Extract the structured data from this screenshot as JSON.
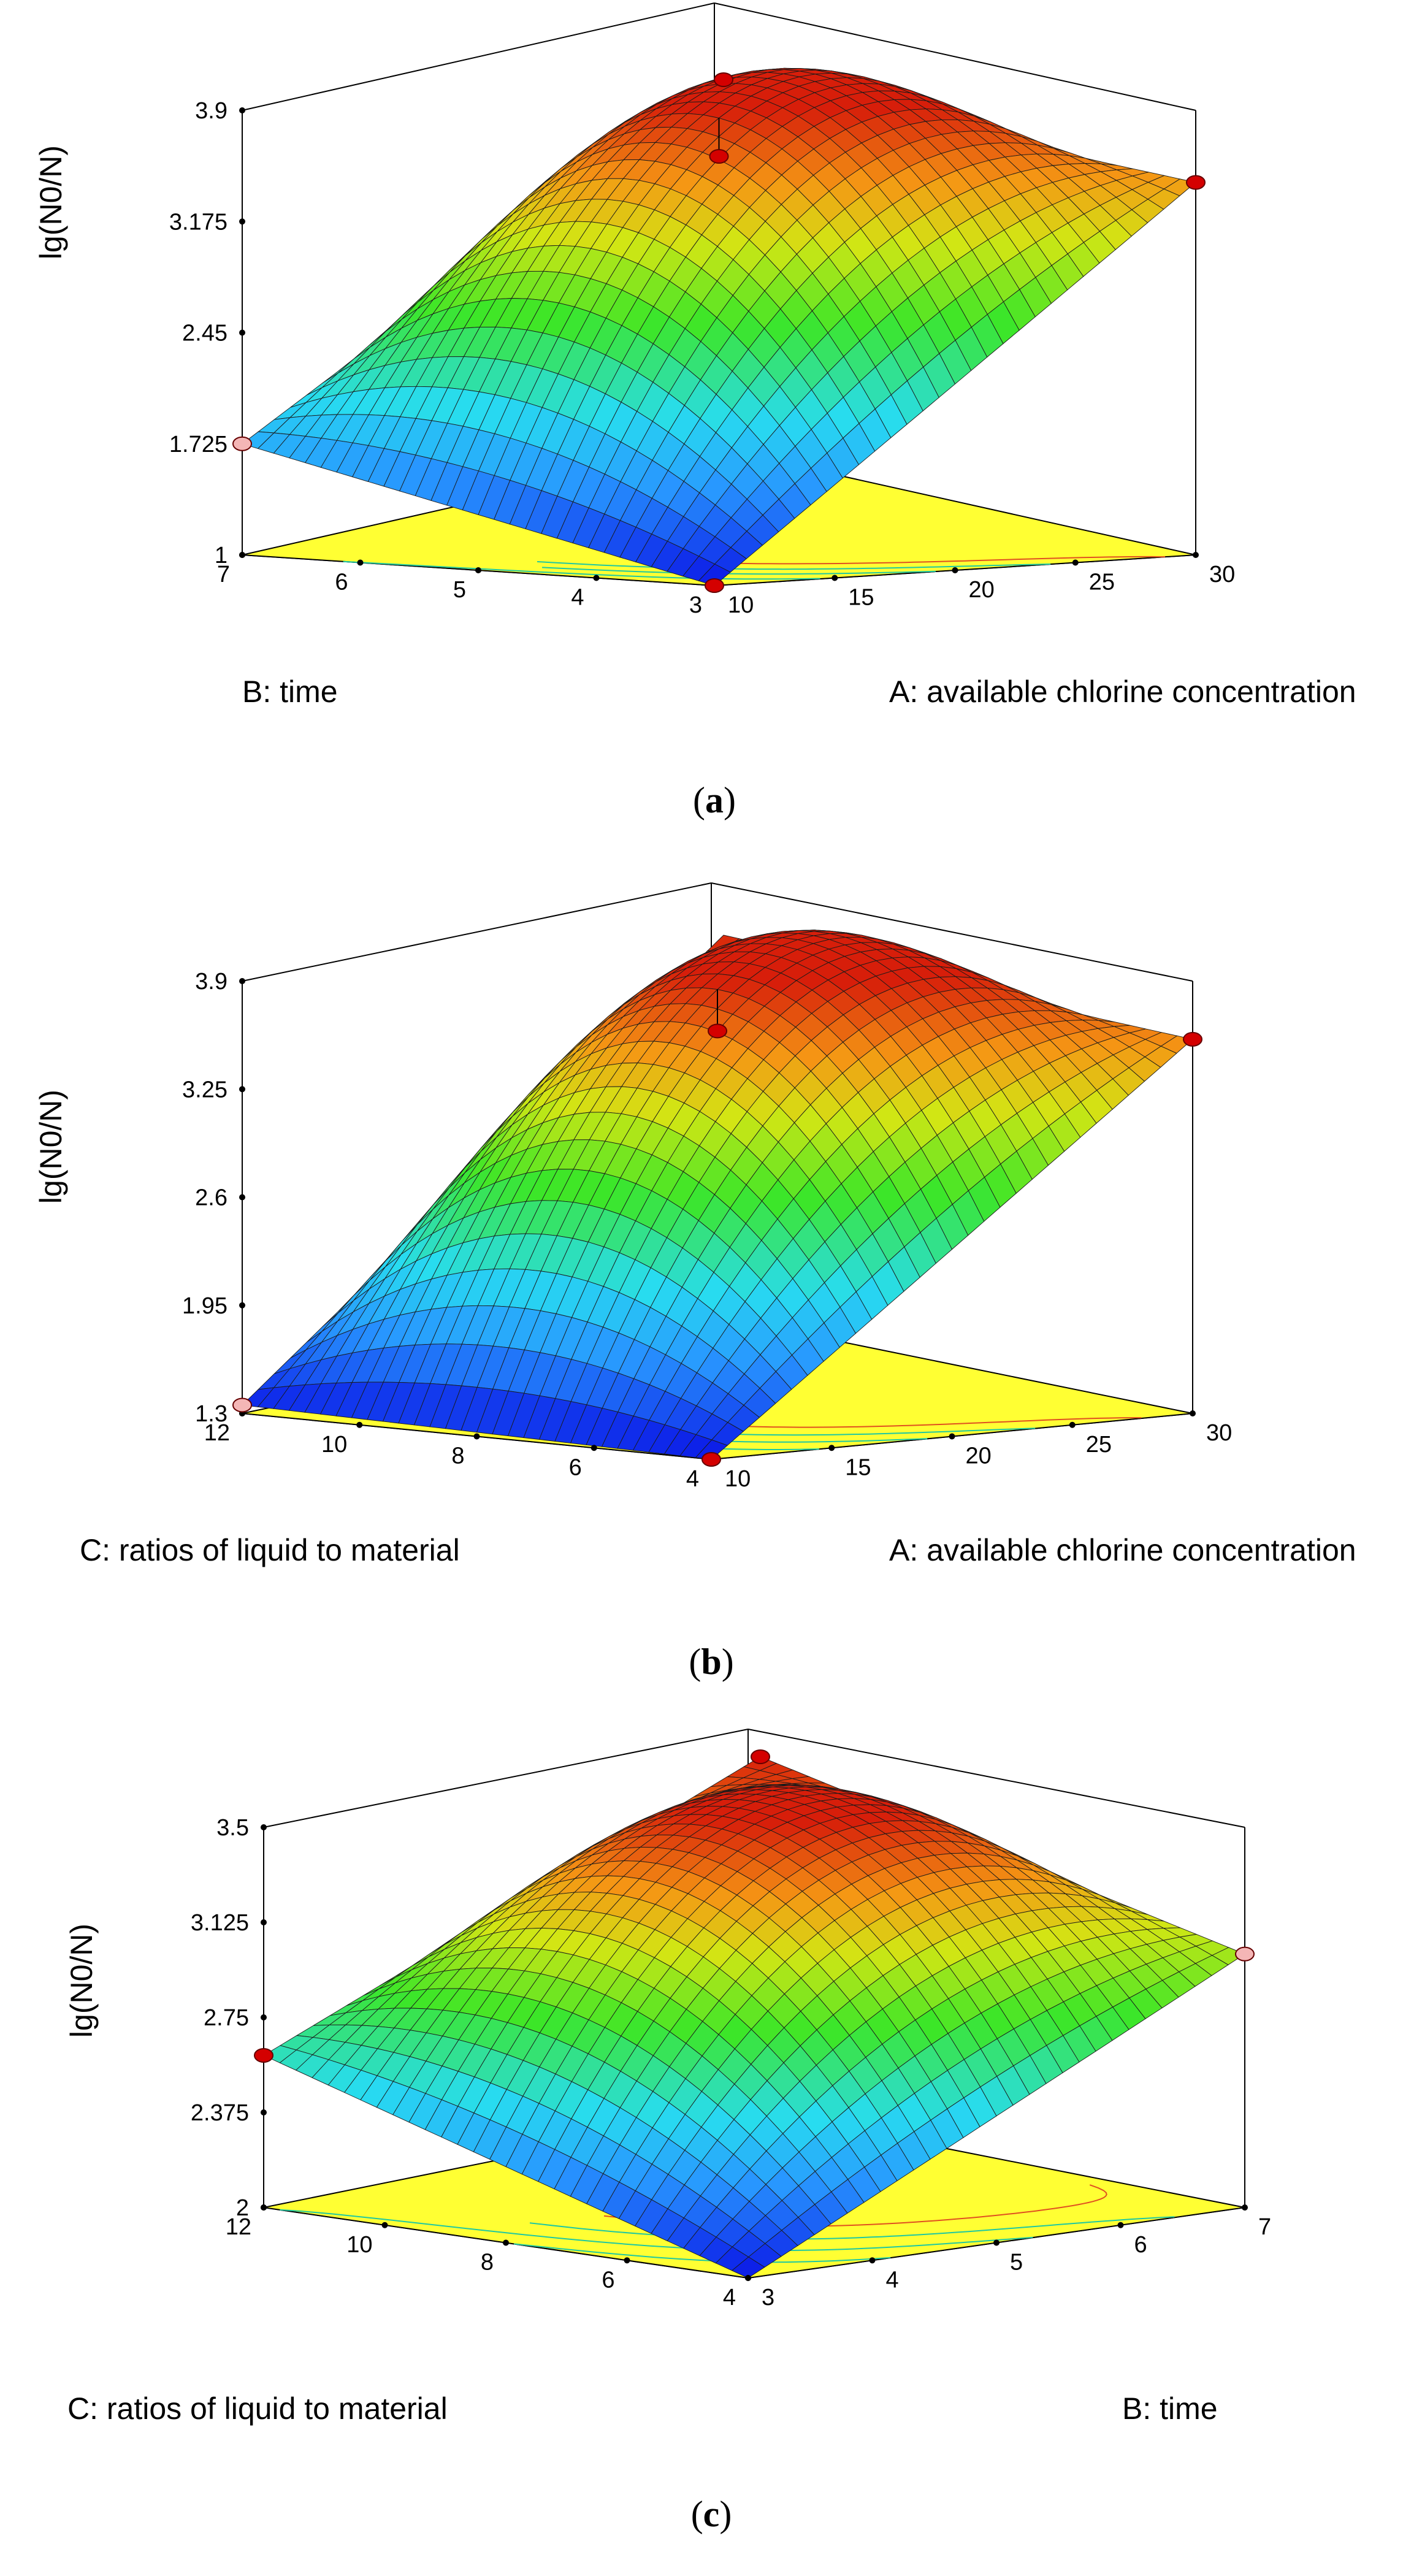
{
  "chart_data": [
    {
      "type": "surface",
      "caption_letter": "a",
      "x": {
        "label": "A: available chlorine concentration",
        "range": [
          10,
          30
        ],
        "ticks": [
          10,
          15,
          20,
          25,
          30
        ]
      },
      "y": {
        "label": "B: time",
        "range": [
          3,
          7
        ],
        "ticks": [
          3,
          4,
          5,
          6,
          7
        ]
      },
      "z": {
        "label": "lg(N0/N)",
        "range": [
          1,
          3.9
        ],
        "ticks": [
          "1",
          "1.725",
          "2.45",
          "3.175",
          "3.9"
        ]
      },
      "corner_values": {
        "x_low_y_low": 1.0,
        "x_high_y_low": 3.43,
        "x_low_y_high": 1.725,
        "x_high_y_high": 3.9
      },
      "center_value": 3.85,
      "design_points": [
        {
          "x": 10,
          "y": 3,
          "z": 1.0,
          "color": "#d40000"
        },
        {
          "x": 30,
          "y": 3,
          "z": 3.43,
          "color": "#d40000"
        },
        {
          "x": 10,
          "y": 7,
          "z": 1.725,
          "color": "#f4b6b6"
        },
        {
          "x": 30,
          "y": 7,
          "z": 3.9,
          "color": "#d40000"
        },
        {
          "x": 20,
          "y": 5,
          "z": 3.6,
          "color": "#d40000"
        }
      ],
      "contour_color": "#20c8a0",
      "floor_color": "#ffff33"
    },
    {
      "type": "surface",
      "caption_letter": "b",
      "x": {
        "label": "A: available chlorine concentration",
        "range": [
          10,
          30
        ],
        "ticks": [
          10,
          15,
          20,
          25,
          30
        ]
      },
      "y": {
        "label": "C: ratios of liquid to material",
        "range": [
          4,
          12
        ],
        "ticks": [
          4,
          6,
          8,
          10,
          12
        ]
      },
      "z": {
        "label": "lg(N0/N)",
        "range": [
          1.3,
          3.9
        ],
        "ticks": [
          "1.3",
          "1.95",
          "2.6",
          "3.25",
          "3.9"
        ]
      },
      "corner_values": {
        "x_low_y_low": 1.3,
        "x_high_y_low": 3.55,
        "x_low_y_high": 1.35,
        "x_high_y_high": 3.9
      },
      "center_value": 3.85,
      "design_points": [
        {
          "x": 10,
          "y": 4,
          "z": 1.3,
          "color": "#d40000"
        },
        {
          "x": 30,
          "y": 4,
          "z": 3.55,
          "color": "#d40000"
        },
        {
          "x": 10,
          "y": 12,
          "z": 1.35,
          "color": "#f4b6b6"
        },
        {
          "x": 20,
          "y": 8,
          "z": 3.6,
          "color": "#d40000"
        }
      ],
      "contour_color": "#20c8a0",
      "floor_color": "#ffff33"
    },
    {
      "type": "surface",
      "caption_letter": "c",
      "x": {
        "label": "B: time",
        "range": [
          3,
          7
        ],
        "ticks": [
          3,
          4,
          5,
          6,
          7
        ]
      },
      "y": {
        "label": "C: ratios of liquid to material",
        "range": [
          4,
          12
        ],
        "ticks": [
          4,
          6,
          8,
          10,
          12
        ]
      },
      "z": {
        "label": "lg(N0/N)",
        "range": [
          2,
          3.5
        ],
        "ticks": [
          "2",
          "2.375",
          "2.75",
          "3.125",
          "3.5"
        ]
      },
      "corner_values": {
        "x_low_y_low": 2.0,
        "x_high_y_low": 3.0,
        "x_low_y_high": 2.6,
        "x_high_y_high": 3.5
      },
      "center_value": 3.45,
      "design_points": [
        {
          "x": 3,
          "y": 12,
          "z": 2.6,
          "color": "#d40000"
        },
        {
          "x": 7,
          "y": 4,
          "z": 3.0,
          "color": "#f4b6b6"
        },
        {
          "x": 7,
          "y": 12,
          "z": 3.5,
          "color": "#d40000"
        }
      ],
      "contour_color": "#20c8a0",
      "floor_color": "#ffff33"
    }
  ]
}
